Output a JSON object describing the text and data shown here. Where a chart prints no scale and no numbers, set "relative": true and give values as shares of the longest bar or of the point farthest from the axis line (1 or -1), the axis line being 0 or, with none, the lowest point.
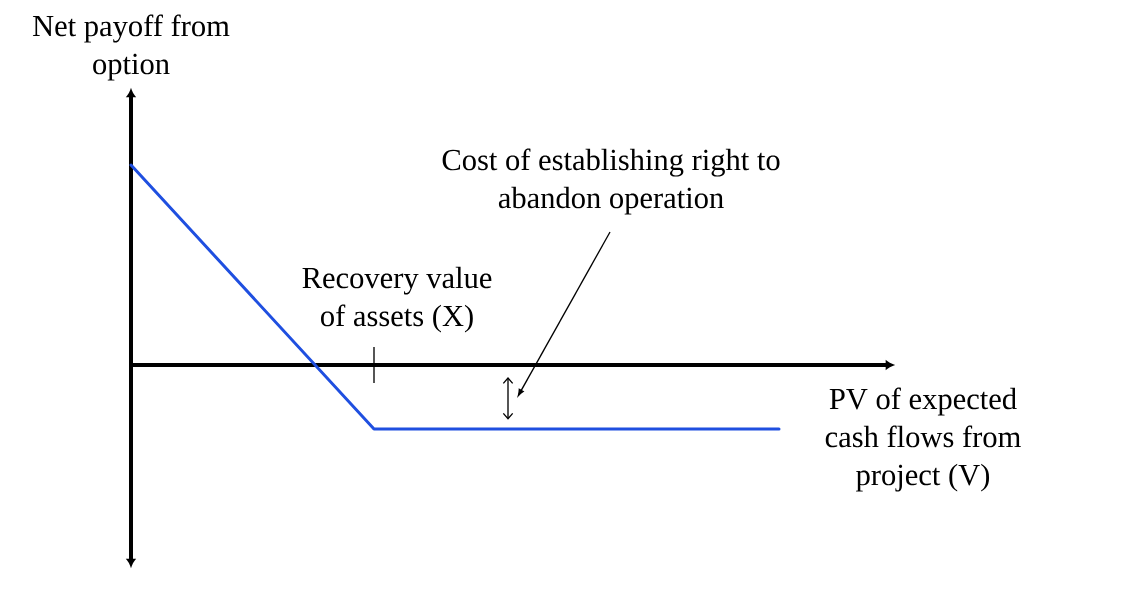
{
  "chart_data": {
    "type": "line",
    "relative": true,
    "xlabel": "PV of expected cash flows from project (V)",
    "ylabel": "Net payoff from option",
    "annotations": [
      "Recovery value of assets (X)",
      "Cost of establishing right to abandon operation"
    ],
    "categories": [
      null,
      null,
      null,
      null,
      null,
      null,
      null,
      null,
      null
    ],
    "series": [
      {
        "color": "#1f4fe0",
        "values": [
          1,
          0.56,
          0.12,
          -0.32,
          -0.32,
          -0.32,
          -0.32,
          -0.32,
          -0.32
        ]
      }
    ],
    "line_style": "solid"
  }
}
